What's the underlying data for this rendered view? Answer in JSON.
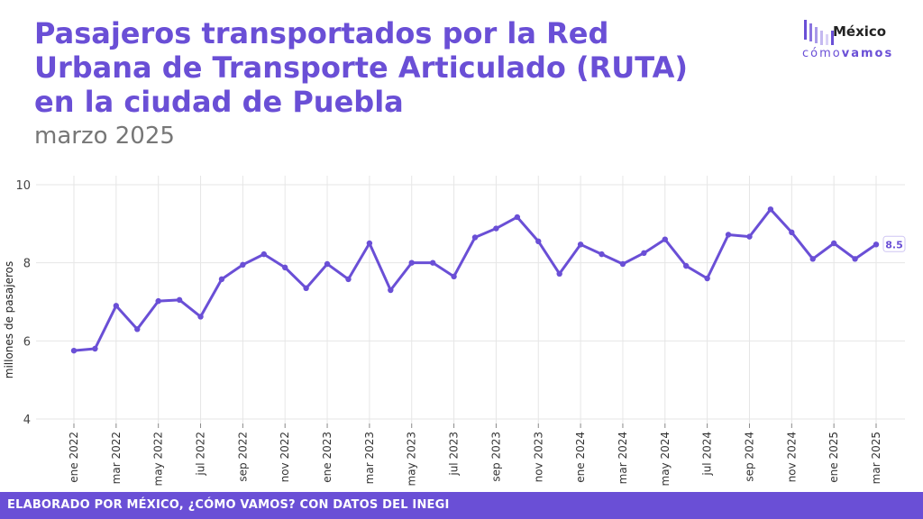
{
  "header": {
    "title": "Pasajeros transportados por la Red Urbana de Transporte Articulado (RUTA) en la ciudad de Puebla",
    "subtitle": "marzo 2025"
  },
  "logo": {
    "line1": "México",
    "line2_a": "cómo",
    "line2_b": "vamos"
  },
  "footer": {
    "text": "ELABORADO POR MÉXICO, ¿CÓMO VAMOS? CON DATOS DEL INEGI"
  },
  "colors": {
    "accent": "#6a4fd6",
    "grid": "#e6e6e6",
    "text": "#333333"
  },
  "chart_data": {
    "type": "line",
    "ylabel": "millones de pasajeros",
    "ylim": [
      4,
      10
    ],
    "yticks": [
      4,
      6,
      8,
      10
    ],
    "grid": true,
    "x": [
      "ene 2022",
      "feb 2022",
      "mar 2022",
      "abr 2022",
      "may 2022",
      "jun 2022",
      "jul 2022",
      "ago 2022",
      "sep 2022",
      "oct 2022",
      "nov 2022",
      "dic 2022",
      "ene 2023",
      "feb 2023",
      "mar 2023",
      "abr 2023",
      "may 2023",
      "jun 2023",
      "jul 2023",
      "ago 2023",
      "sep 2023",
      "oct 2023",
      "nov 2023",
      "dic 2023",
      "ene 2024",
      "feb 2024",
      "mar 2024",
      "abr 2024",
      "may 2024",
      "jun 2024",
      "jul 2024",
      "ago 2024",
      "sep 2024",
      "oct 2024",
      "nov 2024",
      "dic 2024",
      "ene 2025",
      "feb 2025",
      "mar 2025"
    ],
    "xtick_labels": [
      "ene 2022",
      "mar 2022",
      "may 2022",
      "jul 2022",
      "sep 2022",
      "nov 2022",
      "ene 2023",
      "mar 2023",
      "may 2023",
      "jul 2023",
      "sep 2023",
      "nov 2023",
      "ene 2024",
      "mar 2024",
      "may 2024",
      "jul 2024",
      "sep 2024",
      "nov 2024",
      "ene 2025",
      "mar 2025"
    ],
    "series": [
      {
        "values": [
          5.75,
          5.8,
          6.9,
          6.3,
          7.02,
          7.05,
          6.62,
          7.58,
          7.95,
          8.22,
          7.88,
          7.35,
          7.97,
          7.58,
          8.5,
          7.3,
          8.0,
          8.0,
          7.65,
          8.65,
          8.88,
          9.17,
          8.55,
          7.72,
          8.47,
          8.22,
          7.97,
          8.25,
          8.6,
          7.92,
          7.6,
          8.72,
          8.67,
          9.37,
          8.78,
          8.1,
          8.5,
          8.1,
          8.47
        ]
      }
    ],
    "last_label": "8.5"
  }
}
